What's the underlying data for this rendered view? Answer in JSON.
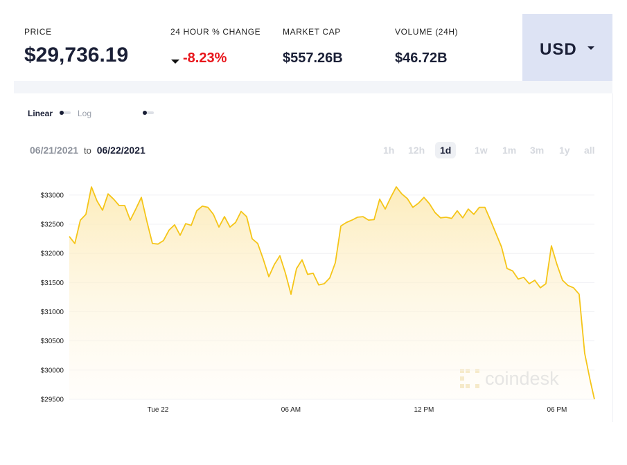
{
  "header": {
    "price_label": "PRICE",
    "price": "$29,736.19",
    "change_label": "24 HOUR % CHANGE",
    "change": "-8.23%",
    "market_cap_label": "MARKET CAP",
    "market_cap": "$557.26B",
    "volume_label": "VOLUME (24H)",
    "volume": "$46.72B",
    "currency": "USD"
  },
  "scale_toggle": {
    "options": [
      "Linear",
      "Log"
    ]
  },
  "date_range": {
    "from": "06/21/2021",
    "separator": "to",
    "to": "06/22/2021"
  },
  "ranges": {
    "options": [
      "1h",
      "12h",
      "1d",
      "1w",
      "1m",
      "3m",
      "1y",
      "all"
    ],
    "selected": "1d"
  },
  "watermark": "coindesk",
  "chart_data": {
    "type": "line",
    "x": [
      -4,
      -3.75,
      -3.5,
      -3.25,
      -3,
      -2.75,
      -2.5,
      -2.25,
      -2,
      -1.75,
      -1.5,
      -1.25,
      -1,
      -0.75,
      -0.5,
      -0.25,
      0,
      0.25,
      0.5,
      0.75,
      1,
      1.25,
      1.5,
      1.75,
      2,
      2.25,
      2.5,
      2.75,
      3,
      3.25,
      3.5,
      3.75,
      4,
      4.25,
      4.5,
      4.75,
      5,
      5.25,
      5.5,
      5.75,
      6,
      6.25,
      6.5,
      6.75,
      7,
      7.25,
      7.5,
      7.75,
      8,
      8.25,
      8.5,
      8.75,
      9,
      9.25,
      9.5,
      9.75,
      10,
      10.25,
      10.5,
      10.75,
      11,
      11.25,
      11.5,
      11.75,
      12,
      12.25,
      12.5,
      12.75,
      13,
      13.25,
      13.5,
      13.75,
      14,
      14.25,
      14.5,
      14.75,
      15,
      15.25,
      15.5,
      15.75,
      16,
      16.25,
      16.5,
      16.75,
      17,
      17.25,
      17.5,
      17.75,
      18,
      18.25,
      18.5,
      18.75,
      19,
      19.25,
      19.5,
      19.69
    ],
    "series": [
      {
        "color": "#f5c518",
        "values": [
          32290,
          32170,
          32570,
          32670,
          33140,
          32900,
          32740,
          33020,
          32930,
          32820,
          32820,
          32570,
          32760,
          32960,
          32550,
          32170,
          32160,
          32220,
          32400,
          32490,
          32310,
          32510,
          32480,
          32730,
          32810,
          32790,
          32670,
          32450,
          32630,
          32450,
          32530,
          32720,
          32630,
          32250,
          32170,
          31900,
          31600,
          31810,
          31960,
          31660,
          31300,
          31740,
          31890,
          31640,
          31660,
          31460,
          31480,
          31580,
          31840,
          32470,
          32530,
          32570,
          32620,
          32630,
          32570,
          32580,
          32930,
          32760,
          32960,
          33140,
          33020,
          32940,
          32790,
          32860,
          32960,
          32850,
          32700,
          32610,
          32620,
          32600,
          32730,
          32610,
          32760,
          32670,
          32790,
          32790,
          32570,
          32340,
          32110,
          31740,
          31700,
          31560,
          31590,
          31480,
          31540,
          31410,
          31480,
          32130,
          31810,
          31540,
          31450,
          31410,
          31300,
          30290,
          29820,
          29500
        ]
      }
    ],
    "xlim": [
      -4,
      19.69
    ],
    "xticks": [
      {
        "value": 0,
        "label": "Tue 22"
      },
      {
        "value": 6,
        "label": "06 AM"
      },
      {
        "value": 12,
        "label": "12 PM"
      },
      {
        "value": 18,
        "label": "06 PM"
      }
    ],
    "ylim": [
      29500,
      33200
    ],
    "yticks": [
      {
        "value": 29500,
        "label": "$29500"
      },
      {
        "value": 30000,
        "label": "$30000"
      },
      {
        "value": 30500,
        "label": "$30500"
      },
      {
        "value": 31000,
        "label": "$31000"
      },
      {
        "value": 31500,
        "label": "$31500"
      },
      {
        "value": 32000,
        "label": "$32000"
      },
      {
        "value": 32500,
        "label": "$32500"
      },
      {
        "value": 33000,
        "label": "$33000"
      }
    ],
    "grid": true
  }
}
